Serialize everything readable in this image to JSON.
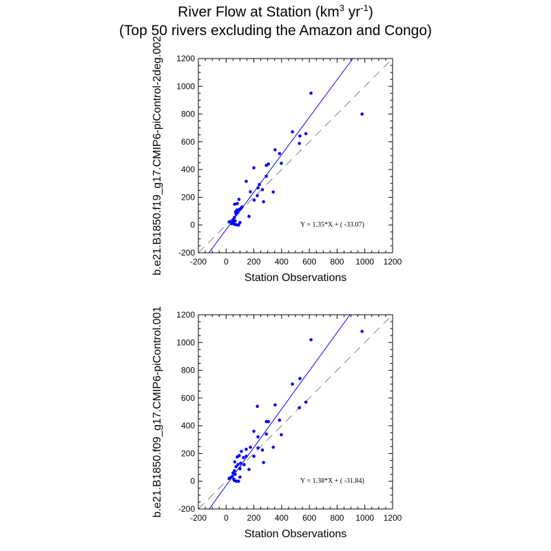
{
  "figure": {
    "title_main": "River Flow at Station (km",
    "title_sup1": "3",
    "title_mid": " yr",
    "title_sup2": "-1",
    "title_end": ")",
    "subtitle": "(Top 50 rivers excluding the Amazon and Congo)"
  },
  "colors": {
    "points": "#0000ff",
    "fit_line": "#0000ff",
    "one_to_one_line": "#808080",
    "frame": "#000000"
  },
  "chart_data": [
    {
      "type": "scatter",
      "xlabel": "Station Observations",
      "ylabel": "b.e21.B1850.f19_g17.CMIP6-piControl-2deg.002",
      "xlim": [
        -200,
        1200
      ],
      "ylim": [
        -200,
        1200
      ],
      "xticks": [
        -200,
        0,
        200,
        400,
        600,
        800,
        1000,
        1200
      ],
      "yticks": [
        -200,
        0,
        200,
        400,
        600,
        800,
        1000,
        1200
      ],
      "grid": false,
      "reference_line": "1:1 dashed",
      "fit": {
        "slope": 1.35,
        "intercept": -33.07
      },
      "equation_text": "Y =  1.35*X + (  -33.07)",
      "points": [
        [
          612,
          950
        ],
        [
          980,
          800
        ],
        [
          575,
          658
        ],
        [
          532,
          642
        ],
        [
          478,
          672
        ],
        [
          528,
          588
        ],
        [
          353,
          542
        ],
        [
          385,
          515
        ],
        [
          398,
          445
        ],
        [
          305,
          440
        ],
        [
          290,
          430
        ],
        [
          200,
          412
        ],
        [
          145,
          315
        ],
        [
          290,
          352
        ],
        [
          240,
          292
        ],
        [
          230,
          268
        ],
        [
          262,
          255
        ],
        [
          175,
          240
        ],
        [
          340,
          238
        ],
        [
          225,
          212
        ],
        [
          270,
          168
        ],
        [
          202,
          180
        ],
        [
          93,
          185
        ],
        [
          80,
          155
        ],
        [
          62,
          150
        ],
        [
          115,
          130
        ],
        [
          105,
          120
        ],
        [
          95,
          112
        ],
        [
          78,
          108
        ],
        [
          68,
          95
        ],
        [
          85,
          90
        ],
        [
          72,
          78
        ],
        [
          60,
          55
        ],
        [
          50,
          38
        ],
        [
          65,
          30
        ],
        [
          45,
          20
        ],
        [
          30,
          25
        ],
        [
          22,
          22
        ],
        [
          55,
          15
        ],
        [
          40,
          10
        ],
        [
          60,
          5
        ],
        [
          75,
          2
        ],
        [
          90,
          0
        ],
        [
          100,
          18
        ],
        [
          165,
          62
        ]
      ]
    },
    {
      "type": "scatter",
      "xlabel": "Station Observations",
      "ylabel": "b.e21.B1850.f09_g17.CMIP6-piControl.001",
      "xlim": [
        -200,
        1200
      ],
      "ylim": [
        -200,
        1200
      ],
      "xticks": [
        -200,
        0,
        200,
        400,
        600,
        800,
        1000,
        1200
      ],
      "yticks": [
        -200,
        0,
        200,
        400,
        600,
        800,
        1000,
        1200
      ],
      "grid": false,
      "reference_line": "1:1 dashed",
      "fit": {
        "slope": 1.38,
        "intercept": -31.84
      },
      "equation_text": "Y =  1.38*X + (  -31.84)",
      "points": [
        [
          612,
          1020
        ],
        [
          980,
          1080
        ],
        [
          532,
          740
        ],
        [
          478,
          700
        ],
        [
          575,
          570
        ],
        [
          528,
          530
        ],
        [
          225,
          540
        ],
        [
          353,
          550
        ],
        [
          385,
          440
        ],
        [
          305,
          430
        ],
        [
          290,
          430
        ],
        [
          398,
          335
        ],
        [
          200,
          360
        ],
        [
          290,
          340
        ],
        [
          230,
          320
        ],
        [
          340,
          245
        ],
        [
          175,
          245
        ],
        [
          145,
          230
        ],
        [
          230,
          240
        ],
        [
          262,
          225
        ],
        [
          110,
          215
        ],
        [
          200,
          180
        ],
        [
          95,
          185
        ],
        [
          80,
          175
        ],
        [
          270,
          135
        ],
        [
          62,
          140
        ],
        [
          125,
          170
        ],
        [
          145,
          180
        ],
        [
          105,
          130
        ],
        [
          85,
          120
        ],
        [
          72,
          105
        ],
        [
          100,
          90
        ],
        [
          165,
          85
        ],
        [
          60,
          75
        ],
        [
          50,
          60
        ],
        [
          65,
          50
        ],
        [
          45,
          35
        ],
        [
          30,
          25
        ],
        [
          22,
          20
        ],
        [
          55,
          15
        ],
        [
          60,
          5
        ],
        [
          75,
          0
        ],
        [
          90,
          0
        ],
        [
          100,
          30
        ],
        [
          130,
          120
        ]
      ]
    }
  ]
}
